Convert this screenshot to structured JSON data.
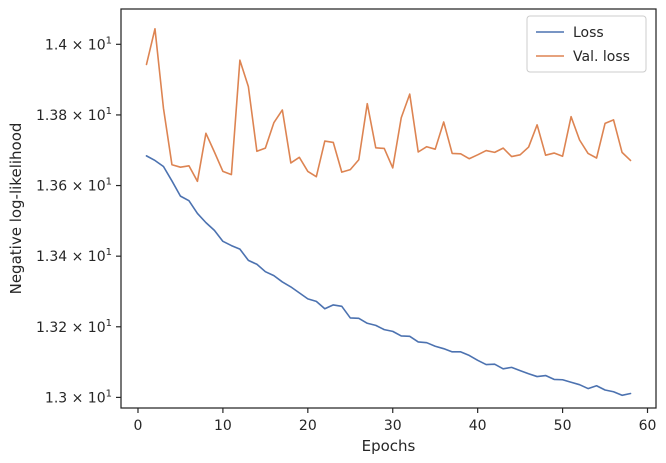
{
  "chart_data": {
    "type": "line",
    "xlabel": "Epochs",
    "ylabel": "Negative log-likelihood",
    "xlim": [
      -2.0,
      61.0
    ],
    "ylim": [
      12.97,
      14.1
    ],
    "grid": false,
    "legend_position": "top-right",
    "x_ticks": [
      0,
      10,
      20,
      30,
      40,
      50,
      60
    ],
    "x_tick_labels": [
      "0",
      "10",
      "20",
      "30",
      "40",
      "50",
      "60"
    ],
    "y_ticks": [
      13.0,
      13.2,
      13.4,
      13.6,
      13.8,
      14.0
    ],
    "y_tick_labels": [
      {
        "mantissa": "1.3",
        "exponent": "1"
      },
      {
        "mantissa": "1.32",
        "exponent": "1"
      },
      {
        "mantissa": "1.34",
        "exponent": "1"
      },
      {
        "mantissa": "1.36",
        "exponent": "1"
      },
      {
        "mantissa": "1.38",
        "exponent": "1"
      },
      {
        "mantissa": "1.4",
        "exponent": "1"
      }
    ],
    "tick_label_times": "×",
    "tick_label_base": "10",
    "x": [
      1,
      2,
      3,
      4,
      5,
      6,
      7,
      8,
      9,
      10,
      11,
      12,
      13,
      14,
      15,
      16,
      17,
      18,
      19,
      20,
      21,
      22,
      23,
      24,
      25,
      26,
      27,
      28,
      29,
      30,
      31,
      32,
      33,
      34,
      35,
      36,
      37,
      38,
      39,
      40,
      41,
      42,
      43,
      44,
      45,
      46,
      47,
      48,
      49,
      50,
      51,
      52,
      53,
      54,
      55,
      56,
      57,
      58
    ],
    "series": [
      {
        "name": "Loss",
        "color": "#4c72b0",
        "values": [
          13.684,
          13.671,
          13.654,
          13.613,
          13.57,
          13.557,
          13.521,
          13.495,
          13.473,
          13.442,
          13.43,
          13.42,
          13.388,
          13.377,
          13.356,
          13.345,
          13.327,
          13.313,
          13.296,
          13.279,
          13.272,
          13.251,
          13.262,
          13.258,
          13.225,
          13.224,
          13.21,
          13.204,
          13.192,
          13.187,
          13.174,
          13.173,
          13.157,
          13.155,
          13.145,
          13.138,
          13.129,
          13.129,
          13.119,
          13.105,
          13.093,
          13.094,
          13.081,
          13.085,
          13.076,
          13.067,
          13.059,
          13.062,
          13.051,
          13.05,
          13.043,
          13.036,
          13.025,
          13.033,
          13.021,
          13.016,
          13.006,
          13.011
        ]
      },
      {
        "name": "Val. loss",
        "color": "#dd8452",
        "values": [
          13.943,
          14.044,
          13.819,
          13.659,
          13.652,
          13.656,
          13.612,
          13.748,
          13.695,
          13.64,
          13.631,
          13.955,
          13.88,
          13.697,
          13.706,
          13.778,
          13.814,
          13.664,
          13.68,
          13.64,
          13.625,
          13.726,
          13.722,
          13.638,
          13.645,
          13.673,
          13.832,
          13.707,
          13.705,
          13.65,
          13.792,
          13.859,
          13.695,
          13.71,
          13.703,
          13.78,
          13.691,
          13.69,
          13.676,
          13.687,
          13.699,
          13.694,
          13.706,
          13.682,
          13.687,
          13.709,
          13.772,
          13.686,
          13.692,
          13.683,
          13.795,
          13.729,
          13.691,
          13.678,
          13.776,
          13.786,
          13.694,
          13.671
        ]
      }
    ]
  }
}
